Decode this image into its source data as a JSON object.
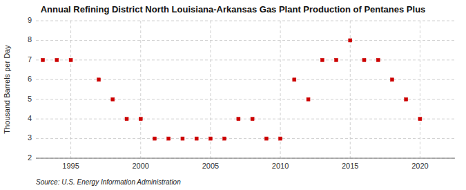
{
  "chart_data": {
    "type": "scatter",
    "title": "Annual Refining District North Louisiana-Arkansas Gas Plant Production of Pentanes Plus",
    "ylabel": "Thousand Barrels per Day",
    "annotations": [
      "Source: U.S. Energy Information Administration"
    ],
    "x": [
      1993,
      1994,
      1995,
      1997,
      1998,
      1999,
      2000,
      2001,
      2002,
      2003,
      2004,
      2005,
      2006,
      2007,
      2008,
      2009,
      2010,
      2011,
      2012,
      2013,
      2014,
      2015,
      2016,
      2017,
      2018,
      2019,
      2020
    ],
    "values": [
      7,
      7,
      7,
      6,
      5,
      4,
      4,
      3,
      3,
      3,
      3,
      3,
      3,
      4,
      4,
      3,
      3,
      6,
      5,
      7,
      7,
      8,
      7,
      7,
      6,
      5,
      4
    ],
    "color": "#cc0000",
    "marker": "square",
    "xlim": [
      1992.5,
      2022.5
    ],
    "xticks": [
      1995,
      2000,
      2005,
      2010,
      2015,
      2020
    ],
    "ylim": [
      2,
      9
    ],
    "yticks": [
      2,
      3,
      4,
      5,
      6,
      7,
      8,
      9
    ],
    "grid": true
  }
}
